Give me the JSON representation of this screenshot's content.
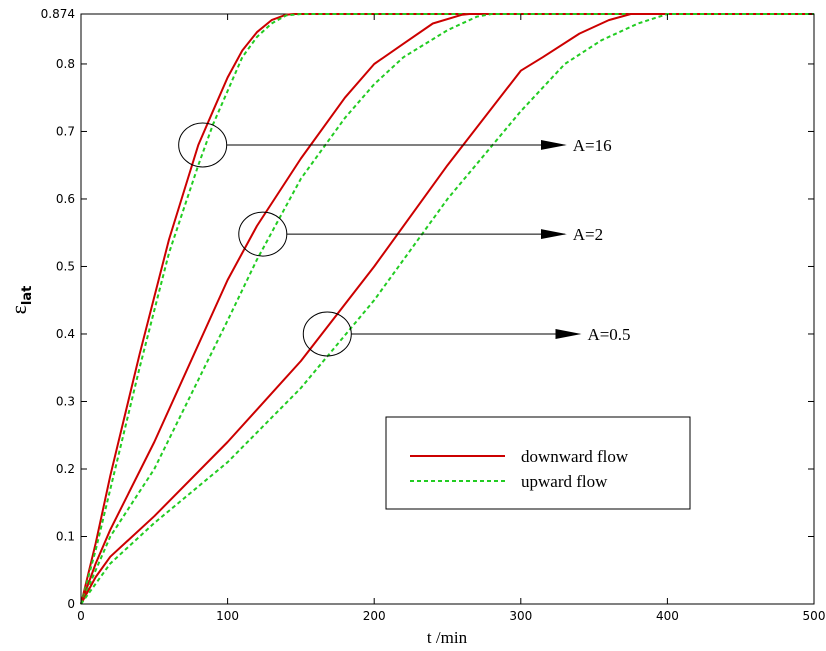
{
  "chart_data": {
    "type": "line",
    "xlabel": "t /min",
    "ylabel": {
      "main": "ε",
      "sub": "lat"
    },
    "xlim": [
      0,
      500
    ],
    "ylim": [
      0,
      0.874
    ],
    "xticks": [
      0,
      100,
      200,
      300,
      400,
      500
    ],
    "yticks": [
      0,
      0.1,
      0.2,
      0.3,
      0.4,
      0.5,
      0.6,
      0.7,
      0.8,
      0.874
    ],
    "ytick_labels": [
      "0",
      "0.1",
      "0.2",
      "0.3",
      "0.4",
      "0.5",
      "0.6",
      "0.7",
      "0.8",
      "0.874"
    ],
    "grid": false,
    "legend": {
      "position": "lower-right",
      "entries": [
        {
          "label": "downward flow",
          "color": "#cc0000",
          "style": "solid"
        },
        {
          "label": "upward flow",
          "color": "#22cc22",
          "style": "dashed"
        }
      ]
    },
    "series": [
      {
        "name": "downward flow",
        "group": "A=16",
        "color": "#cc0000",
        "style": "solid",
        "x": [
          0,
          10,
          20,
          40,
          60,
          80,
          90,
          100,
          110,
          120,
          130,
          140,
          145,
          500
        ],
        "y": [
          0,
          0.09,
          0.19,
          0.37,
          0.54,
          0.68,
          0.73,
          0.78,
          0.82,
          0.847,
          0.865,
          0.873,
          0.874,
          0.874
        ]
      },
      {
        "name": "upward flow",
        "group": "A=16",
        "color": "#22cc22",
        "style": "dashed",
        "x": [
          0,
          10,
          20,
          40,
          60,
          80,
          90,
          100,
          110,
          120,
          130,
          140,
          150,
          500
        ],
        "y": [
          0,
          0.08,
          0.17,
          0.35,
          0.52,
          0.65,
          0.71,
          0.76,
          0.81,
          0.84,
          0.86,
          0.872,
          0.874,
          0.874
        ]
      },
      {
        "name": "downward flow",
        "group": "A=2",
        "color": "#cc0000",
        "style": "solid",
        "x": [
          0,
          10,
          20,
          50,
          100,
          120,
          150,
          180,
          200,
          220,
          240,
          260,
          265,
          500
        ],
        "y": [
          0,
          0.06,
          0.11,
          0.24,
          0.48,
          0.56,
          0.66,
          0.75,
          0.8,
          0.83,
          0.86,
          0.873,
          0.874,
          0.874
        ]
      },
      {
        "name": "upward flow",
        "group": "A=2",
        "color": "#22cc22",
        "style": "dashed",
        "x": [
          0,
          10,
          20,
          50,
          100,
          120,
          150,
          180,
          200,
          220,
          250,
          270,
          280,
          500
        ],
        "y": [
          0,
          0.05,
          0.1,
          0.2,
          0.42,
          0.51,
          0.63,
          0.72,
          0.77,
          0.81,
          0.85,
          0.87,
          0.874,
          0.874
        ]
      },
      {
        "name": "downward flow",
        "group": "A=0.5",
        "color": "#cc0000",
        "style": "solid",
        "x": [
          0,
          10,
          20,
          50,
          100,
          150,
          200,
          250,
          300,
          315,
          340,
          360,
          375,
          500
        ],
        "y": [
          0,
          0.04,
          0.07,
          0.13,
          0.24,
          0.36,
          0.5,
          0.65,
          0.79,
          0.81,
          0.845,
          0.865,
          0.874,
          0.874
        ]
      },
      {
        "name": "upward flow",
        "group": "A=0.5",
        "color": "#22cc22",
        "style": "dashed",
        "x": [
          0,
          10,
          20,
          50,
          100,
          150,
          200,
          250,
          300,
          330,
          355,
          380,
          400,
          500
        ],
        "y": [
          0,
          0.03,
          0.06,
          0.12,
          0.21,
          0.32,
          0.45,
          0.6,
          0.73,
          0.8,
          0.835,
          0.86,
          0.874,
          0.874
        ]
      }
    ],
    "annotations": [
      {
        "label": "A=16",
        "circle_at": [
          83,
          0.68
        ],
        "arrow_to": 330,
        "y": 0.68
      },
      {
        "label": "A=2",
        "circle_at": [
          124,
          0.548
        ],
        "arrow_to": 330,
        "y": 0.548
      },
      {
        "label": "A=0.5",
        "circle_at": [
          168,
          0.4
        ],
        "arrow_to": 340,
        "y": 0.4
      }
    ]
  }
}
